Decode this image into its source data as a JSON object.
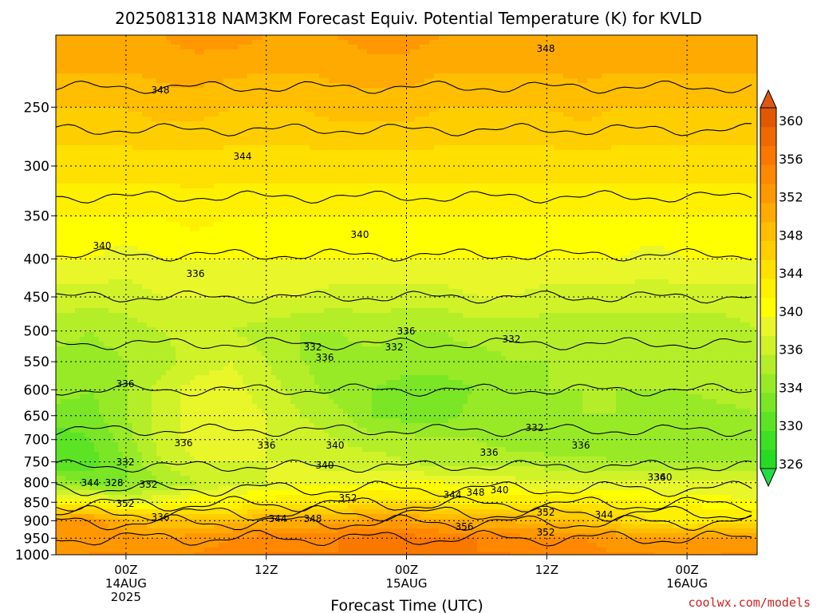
{
  "chart_data": {
    "type": "heatmap",
    "title": "2025081318 NAM3KM Forecast Equiv. Potential Temperature (K) for KVLD",
    "xlabel": "Forecast Time (UTC)",
    "ylabel": "",
    "y_scale": "log-pressure",
    "ylim": [
      1000,
      200
    ],
    "y_ticks": [
      "250",
      "300",
      "350",
      "400",
      "450",
      "500",
      "550",
      "600",
      "650",
      "700",
      "750",
      "800",
      "850",
      "900",
      "950",
      "1000"
    ],
    "x_ticks": [
      {
        "hours": 6,
        "lines": [
          "00Z",
          "14AUG",
          "2025"
        ]
      },
      {
        "hours": 18,
        "lines": [
          "12Z"
        ]
      },
      {
        "hours": 30,
        "lines": [
          "00Z",
          "15AUG"
        ]
      },
      {
        "hours": 42,
        "lines": [
          "12Z"
        ]
      },
      {
        "hours": 54,
        "lines": [
          "00Z",
          "16AUG"
        ]
      }
    ],
    "xlim": [
      0,
      60
    ],
    "grid": true,
    "colorbar": {
      "labels": [
        "326",
        "330",
        "334",
        "336",
        "340",
        "344",
        "348",
        "352",
        "356",
        "360"
      ],
      "levels": [
        326,
        328,
        330,
        332,
        334,
        336,
        338,
        340,
        342,
        344,
        346,
        348,
        350,
        352,
        354,
        356,
        358,
        360
      ],
      "colors": [
        "#26dc22",
        "#3ee024",
        "#5ce424",
        "#7ae626",
        "#98ea26",
        "#b4ee28",
        "#d0f228",
        "#e8f62a",
        "#ffff00",
        "#fff000",
        "#ffe000",
        "#ffce00",
        "#ffbe00",
        "#ffaa00",
        "#ff9800",
        "#ff8800",
        "#f87800",
        "#ee6a00",
        "#e05800"
      ],
      "under_color": "#22dd44",
      "over_color": "#e05810"
    },
    "ground_color": "#a0522d",
    "grid_columns": [
      0,
      3,
      6,
      9,
      12,
      15,
      18,
      21,
      24,
      27,
      30,
      33,
      36,
      39,
      42,
      45,
      48,
      51,
      54,
      57,
      60
    ],
    "grid_rows": [
      200,
      250,
      300,
      350,
      400,
      450,
      500,
      550,
      600,
      650,
      700,
      750,
      800,
      850,
      900,
      950,
      1000
    ],
    "values": [
      [
        352,
        352,
        352,
        352,
        353,
        353,
        352,
        352,
        352,
        353,
        353,
        352,
        352,
        352,
        352,
        352,
        352,
        352,
        352,
        352,
        352
      ],
      [
        348,
        348,
        348,
        349,
        349,
        348,
        348,
        348,
        349,
        349,
        349,
        348,
        348,
        348,
        348,
        349,
        348,
        348,
        348,
        348,
        348
      ],
      [
        345,
        345,
        345,
        345,
        345,
        345,
        345,
        345,
        345,
        345,
        345,
        345,
        345,
        345,
        345,
        345,
        345,
        345,
        345,
        345,
        345
      ],
      [
        342,
        342,
        342,
        342,
        343,
        342,
        342,
        342,
        342,
        342,
        342,
        342,
        342,
        342,
        342,
        342,
        342,
        342,
        342,
        342,
        342
      ],
      [
        340,
        340,
        339,
        340,
        340,
        340,
        340,
        340,
        340,
        340,
        340,
        340,
        340,
        340,
        340,
        340,
        340,
        339,
        340,
        340,
        340
      ],
      [
        337,
        337,
        337,
        338,
        338,
        338,
        338,
        338,
        337,
        337,
        337,
        337,
        338,
        338,
        337,
        337,
        337,
        337,
        337,
        337,
        337
      ],
      [
        335,
        334,
        335,
        336,
        337,
        336,
        335,
        334,
        334,
        335,
        334,
        334,
        335,
        335,
        335,
        335,
        335,
        335,
        335,
        335,
        336
      ],
      [
        333,
        333,
        334,
        335,
        337,
        338,
        336,
        334,
        333,
        333,
        333,
        333,
        333,
        334,
        334,
        335,
        335,
        334,
        335,
        335,
        335
      ],
      [
        333,
        332,
        334,
        337,
        339,
        339,
        337,
        335,
        333,
        332,
        331,
        331,
        332,
        333,
        334,
        334,
        334,
        334,
        334,
        335,
        335
      ],
      [
        331,
        331,
        334,
        337,
        339,
        339,
        338,
        336,
        335,
        332,
        331,
        331,
        333,
        333,
        333,
        334,
        334,
        333,
        333,
        333,
        334
      ],
      [
        329,
        330,
        333,
        337,
        339,
        339,
        338,
        337,
        336,
        335,
        335,
        334,
        334,
        333,
        332,
        332,
        332,
        332,
        333,
        333,
        333
      ],
      [
        328,
        329,
        332,
        336,
        338,
        338,
        338,
        338,
        337,
        337,
        336,
        335,
        335,
        335,
        335,
        335,
        334,
        334,
        334,
        334,
        334
      ],
      [
        334,
        331,
        332,
        334,
        336,
        337,
        338,
        339,
        339,
        340,
        340,
        340,
        339,
        339,
        338,
        338,
        338,
        338,
        338,
        338,
        338
      ],
      [
        342,
        342,
        338,
        340,
        342,
        342,
        343,
        344,
        344,
        345,
        345,
        344,
        344,
        344,
        344,
        344,
        343,
        342,
        342,
        341,
        340
      ],
      [
        352,
        353,
        350,
        348,
        348,
        349,
        350,
        350,
        351,
        352,
        352,
        351,
        350,
        350,
        349,
        348,
        346,
        344,
        343,
        344,
        344
      ],
      [
        353,
        354,
        353,
        352,
        353,
        354,
        355,
        355,
        356,
        357,
        357,
        356,
        356,
        355,
        354,
        354,
        353,
        352,
        352,
        353,
        353
      ],
      [
        353,
        354,
        354,
        353,
        354,
        355,
        356,
        356,
        356,
        357,
        357,
        357,
        356,
        356,
        355,
        355,
        354,
        354,
        353,
        354,
        354
      ]
    ],
    "contour_labels": [
      "348",
      "348",
      "344",
      "340",
      "340",
      "336",
      "336",
      "336",
      "332",
      "332",
      "336",
      "332",
      "332",
      "336",
      "340",
      "340",
      "336",
      "336",
      "336",
      "336",
      "332",
      "332",
      "344",
      "328",
      "352",
      "336",
      "344",
      "348",
      "352",
      "344",
      "348",
      "340",
      "356",
      "352",
      "352",
      "344",
      "340"
    ]
  },
  "watermark": "coolwx.com/models"
}
